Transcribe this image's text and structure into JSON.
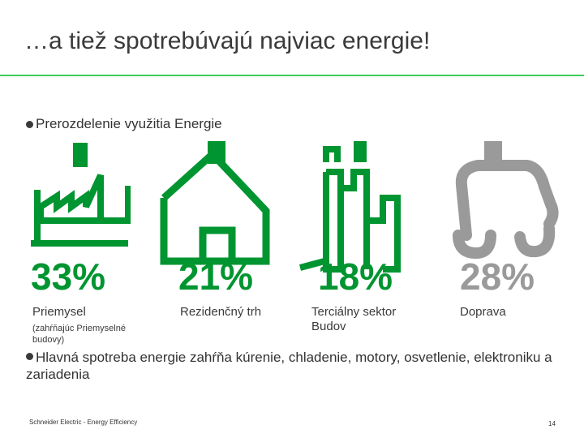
{
  "slide": {
    "title": "…a tiež spotrebúvajú najviac energie!",
    "bullet1": "Prerozdelenie využitia Energie",
    "bullet2": "Hlavná spotreba energie zahŕňa kúrenie, chladenie, motory, osvetlenie, elektroniku a zariadenia",
    "footer": "Schneider Electric - Energy Efficiency",
    "page_number": "14"
  },
  "sectors": [
    {
      "percent": "33%",
      "label": "Priemysel",
      "sublabel": "(zahŕňajúc Priemyselné budovy)",
      "icon": "factory-icon"
    },
    {
      "percent": "21%",
      "label": "Rezidenčný trh",
      "icon": "house-icon"
    },
    {
      "percent": "18%",
      "label": "Terciálny sektor Budov",
      "icon": "buildings-icon"
    },
    {
      "percent": "28%",
      "label": "Doprava",
      "icon": "car-icon"
    }
  ],
  "colors": {
    "accent": "#009530",
    "muted": "#9a9a9a",
    "rule": "#3dcd58"
  }
}
